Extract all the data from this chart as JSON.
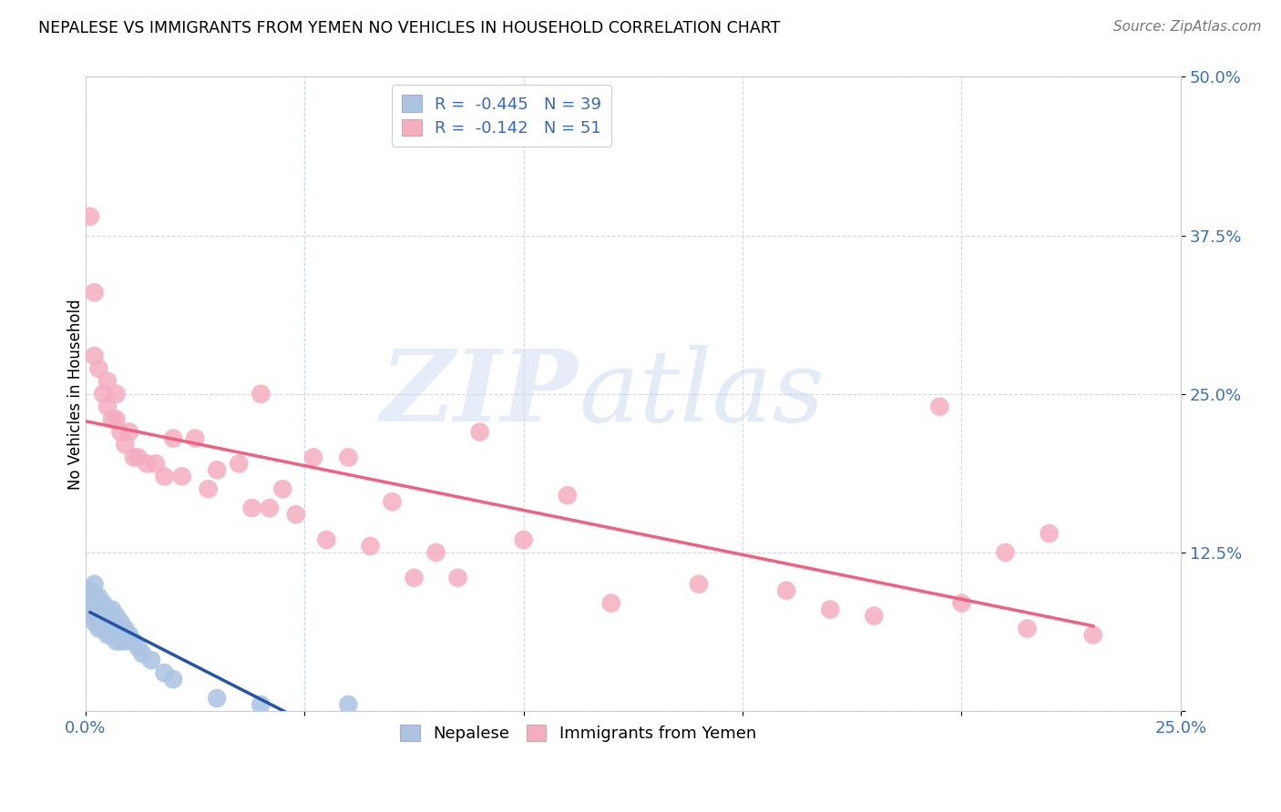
{
  "title": "NEPALESE VS IMMIGRANTS FROM YEMEN NO VEHICLES IN HOUSEHOLD CORRELATION CHART",
  "source": "Source: ZipAtlas.com",
  "ylabel": "No Vehicles in Household",
  "xlim": [
    0.0,
    0.25
  ],
  "ylim": [
    0.0,
    0.5
  ],
  "xticks": [
    0.0,
    0.05,
    0.1,
    0.15,
    0.2,
    0.25
  ],
  "yticks": [
    0.0,
    0.125,
    0.25,
    0.375,
    0.5
  ],
  "xtick_labels": [
    "0.0%",
    "",
    "",
    "",
    "",
    "25.0%"
  ],
  "ytick_labels": [
    "",
    "12.5%",
    "25.0%",
    "37.5%",
    "50.0%"
  ],
  "nepalese_R": -0.445,
  "nepalese_N": 39,
  "yemen_R": -0.142,
  "yemen_N": 51,
  "nepalese_color": "#aac4e2",
  "yemen_color": "#f5adc0",
  "nepalese_line_color": "#2255aa",
  "nepalese_line_dash_color": "#99bbdd",
  "yemen_line_color": "#f06080",
  "legend_nepalese_label": "Nepalese",
  "legend_yemen_label": "Immigrants from Yemen",
  "nepalese_x": [
    0.001,
    0.001,
    0.001,
    0.002,
    0.002,
    0.002,
    0.002,
    0.003,
    0.003,
    0.003,
    0.003,
    0.004,
    0.004,
    0.004,
    0.004,
    0.005,
    0.005,
    0.005,
    0.005,
    0.006,
    0.006,
    0.006,
    0.007,
    0.007,
    0.007,
    0.008,
    0.008,
    0.009,
    0.009,
    0.01,
    0.011,
    0.012,
    0.013,
    0.015,
    0.018,
    0.02,
    0.03,
    0.04,
    0.06
  ],
  "nepalese_y": [
    0.095,
    0.085,
    0.075,
    0.1,
    0.09,
    0.08,
    0.07,
    0.09,
    0.08,
    0.075,
    0.065,
    0.085,
    0.08,
    0.075,
    0.065,
    0.08,
    0.075,
    0.07,
    0.06,
    0.08,
    0.07,
    0.06,
    0.075,
    0.065,
    0.055,
    0.07,
    0.055,
    0.065,
    0.055,
    0.06,
    0.055,
    0.05,
    0.045,
    0.04,
    0.03,
    0.025,
    0.01,
    0.005,
    0.005
  ],
  "yemen_x": [
    0.001,
    0.002,
    0.002,
    0.003,
    0.004,
    0.005,
    0.005,
    0.006,
    0.007,
    0.007,
    0.008,
    0.009,
    0.01,
    0.011,
    0.012,
    0.014,
    0.016,
    0.018,
    0.02,
    0.022,
    0.025,
    0.028,
    0.03,
    0.035,
    0.038,
    0.04,
    0.042,
    0.045,
    0.048,
    0.052,
    0.055,
    0.06,
    0.065,
    0.07,
    0.075,
    0.08,
    0.085,
    0.09,
    0.1,
    0.11,
    0.12,
    0.14,
    0.16,
    0.17,
    0.18,
    0.195,
    0.2,
    0.21,
    0.215,
    0.22,
    0.23
  ],
  "yemen_y": [
    0.39,
    0.33,
    0.28,
    0.27,
    0.25,
    0.24,
    0.26,
    0.23,
    0.25,
    0.23,
    0.22,
    0.21,
    0.22,
    0.2,
    0.2,
    0.195,
    0.195,
    0.185,
    0.215,
    0.185,
    0.215,
    0.175,
    0.19,
    0.195,
    0.16,
    0.25,
    0.16,
    0.175,
    0.155,
    0.2,
    0.135,
    0.2,
    0.13,
    0.165,
    0.105,
    0.125,
    0.105,
    0.22,
    0.135,
    0.17,
    0.085,
    0.1,
    0.095,
    0.08,
    0.075,
    0.24,
    0.085,
    0.125,
    0.065,
    0.14,
    0.06
  ]
}
